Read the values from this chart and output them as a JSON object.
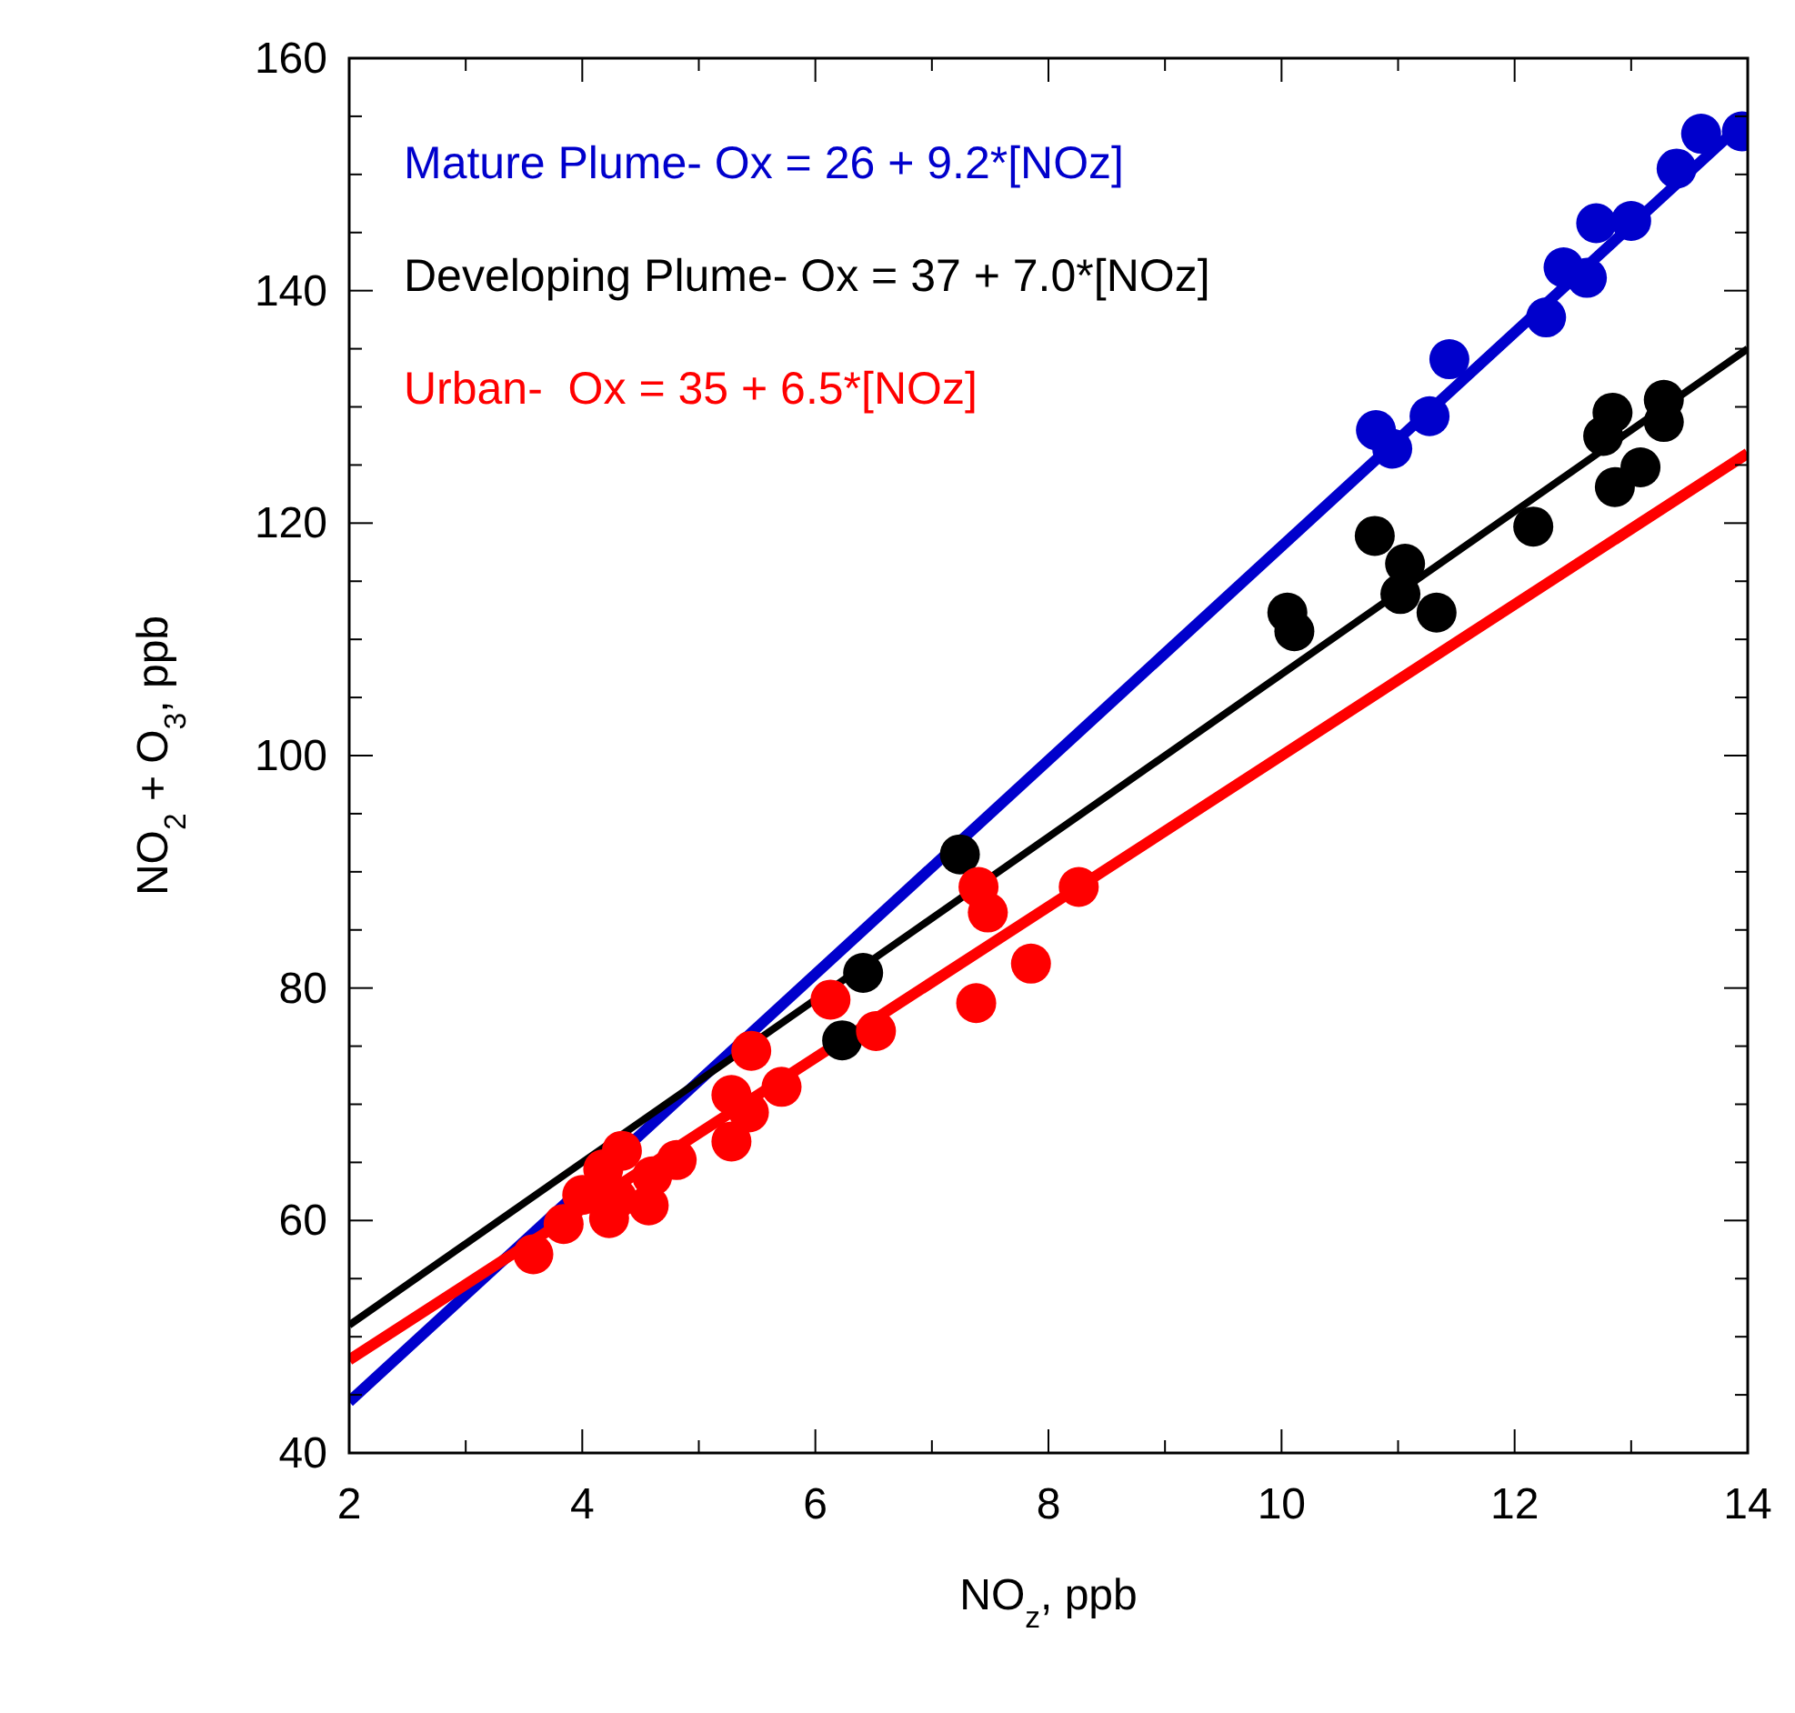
{
  "chart_data": {
    "type": "scatter",
    "xlabel": "NO$_{z}$, ppb",
    "ylabel": "NO$_{2}$ + O$_{3}$, ppb",
    "xlim": [
      2,
      14
    ],
    "ylim": [
      40,
      160
    ],
    "xticks": [
      2,
      {
        "value": 3,
        "label": null
      },
      4,
      {
        "value": 5,
        "label": null
      },
      6,
      {
        "value": 7,
        "label": null
      },
      8,
      {
        "value": 9,
        "label": null
      },
      10,
      {
        "value": 11,
        "label": null
      },
      12,
      {
        "value": 13,
        "label": null
      },
      14
    ],
    "yticks": [
      40,
      {
        "value": 45,
        "label": null
      },
      {
        "value": 50,
        "label": null
      },
      {
        "value": 55,
        "label": null
      },
      60,
      {
        "value": 65,
        "label": null
      },
      {
        "value": 70,
        "label": null
      },
      {
        "value": 75,
        "label": null
      },
      80,
      {
        "value": 85,
        "label": null
      },
      {
        "value": 90,
        "label": null
      },
      {
        "value": 95,
        "label": null
      },
      100,
      {
        "value": 105,
        "label": null
      },
      {
        "value": 110,
        "label": null
      },
      {
        "value": 115,
        "label": null
      },
      120,
      {
        "value": 125,
        "label": null
      },
      {
        "value": 130,
        "label": null
      },
      {
        "value": 135,
        "label": null
      },
      140,
      {
        "value": 145,
        "label": null
      },
      {
        "value": 150,
        "label": null
      },
      {
        "value": 155,
        "label": null
      },
      160
    ],
    "grid": false,
    "legend": "top left",
    "marker": "circle",
    "series": [
      {
        "type": "line",
        "marker": "none",
        "color": "#0000cc",
        "x": [
          2,
          14
        ],
        "values": [
          44.4,
          154.8
        ]
      },
      {
        "type": "line",
        "marker": "none",
        "color": "#000000",
        "x": [
          2,
          14
        ],
        "values": [
          51,
          135
        ]
      },
      {
        "type": "line",
        "marker": "none",
        "color": "#ff0000",
        "x": [
          2,
          14
        ],
        "values": [
          48,
          126
        ]
      },
      {
        "name": "Mature Plume- Ox = 26 + 9.2*[NOz]",
        "color": "#0000cc",
        "x": [
          10.81,
          10.95,
          11.27,
          11.44,
          12.27,
          12.42,
          12.62,
          12.7,
          13.0,
          13.39,
          13.6,
          13.95
        ],
        "values": [
          128,
          126.4,
          129.2,
          134.1,
          137.7,
          142,
          141.1,
          145.8,
          146,
          150.5,
          153.5,
          153.7
        ]
      },
      {
        "name": "Developing Plume- Ox = 37 + 7.0*[NOz]",
        "color": "#000000",
        "x": [
          10.05,
          10.11,
          10.8,
          11.06,
          11.02,
          11.33,
          12.16,
          12.84,
          12.76,
          13.08,
          12.86,
          13.28,
          13.28,
          7.24,
          6.41,
          6.23
        ],
        "values": [
          112.3,
          110.7,
          118.9,
          116.5,
          113.9,
          112.3,
          119.7,
          129.5,
          127.5,
          124.8,
          123.1,
          130.6,
          128.7,
          91.5,
          81.3,
          75.5
        ]
      },
      {
        "name": "Urban-  Ox = 35 + 6.5*[NOz]",
        "color": "#ff0000",
        "x": [
          7.4,
          7.48,
          8.26,
          7.85,
          7.38,
          6.13,
          6.52,
          5.45,
          5.71,
          5.28,
          5.43,
          5.28,
          4.81,
          4.57,
          4.34,
          4.18,
          4.23,
          4.0,
          3.84,
          3.58,
          4.3,
          4.6
        ],
        "values": [
          88.7,
          86.5,
          88.7,
          82.1,
          78.7,
          79,
          76.3,
          74.6,
          71.5,
          70.8,
          69.3,
          66.8,
          65.2,
          61.3,
          66,
          64.4,
          60.2,
          62.2,
          59.7,
          57.1,
          61.9,
          63.8
        ]
      }
    ]
  }
}
